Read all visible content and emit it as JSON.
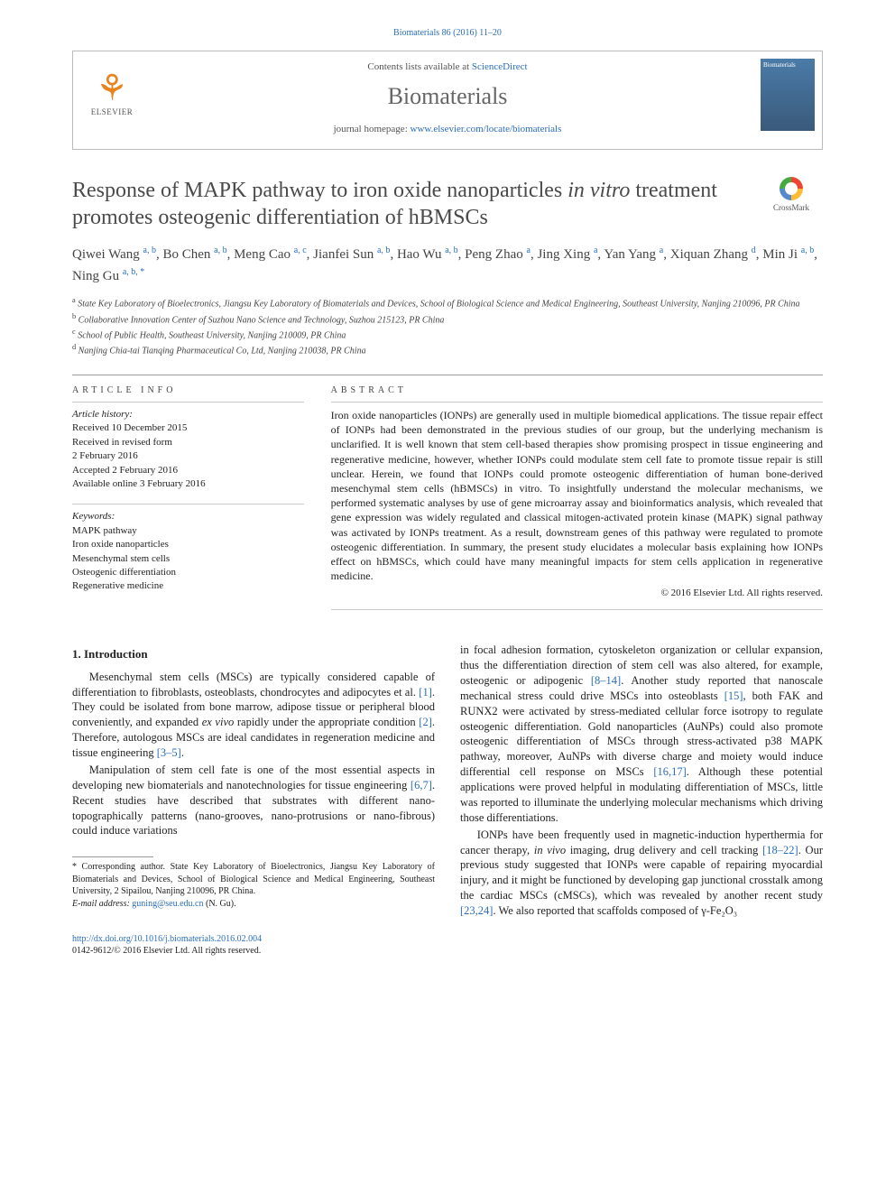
{
  "header": {
    "citation": "Biomaterials 86 (2016) 11–20",
    "contents_prefix": "Contents lists available at ",
    "contents_link": "ScienceDirect",
    "journal": "Biomaterials",
    "homepage_prefix": "journal homepage: ",
    "homepage_url": "www.elsevier.com/locate/biomaterials",
    "publisher_logo_text": "ELSEVIER",
    "cover_text": "Biomaterials"
  },
  "title": {
    "line1": "Response of MAPK pathway to iron oxide nanoparticles ",
    "italic": "in vitro",
    "line2": " treatment promotes osteogenic differentiation of hBMSCs"
  },
  "crossmark": "CrossMark",
  "authors": [
    {
      "name": "Qiwei Wang",
      "affs": "a, b"
    },
    {
      "name": "Bo Chen",
      "affs": "a, b"
    },
    {
      "name": "Meng Cao",
      "affs": "a, c"
    },
    {
      "name": "Jianfei Sun",
      "affs": "a, b"
    },
    {
      "name": "Hao Wu",
      "affs": "a, b"
    },
    {
      "name": "Peng Zhao",
      "affs": "a"
    },
    {
      "name": "Jing Xing",
      "affs": "a"
    },
    {
      "name": "Yan Yang",
      "affs": "a"
    },
    {
      "name": "Xiquan Zhang",
      "affs": "d"
    },
    {
      "name": "Min Ji",
      "affs": "a, b"
    },
    {
      "name": "Ning Gu",
      "affs": "a, b, *"
    }
  ],
  "affiliations": [
    {
      "key": "a",
      "text": "State Key Laboratory of Bioelectronics, Jiangsu Key Laboratory of Biomaterials and Devices, School of Biological Science and Medical Engineering, Southeast University, Nanjing 210096, PR China"
    },
    {
      "key": "b",
      "text": "Collaborative Innovation Center of Suzhou Nano Science and Technology, Suzhou 215123, PR China"
    },
    {
      "key": "c",
      "text": "School of Public Health, Southeast University, Nanjing 210009, PR China"
    },
    {
      "key": "d",
      "text": "Nanjing Chia-tai Tianqing Pharmaceutical Co, Ltd, Nanjing 210038, PR China"
    }
  ],
  "article_info": {
    "label": "ARTICLE INFO",
    "history_label": "Article history:",
    "history": [
      "Received 10 December 2015",
      "Received in revised form",
      "2 February 2016",
      "Accepted 2 February 2016",
      "Available online 3 February 2016"
    ],
    "keywords_label": "Keywords:",
    "keywords": [
      "MAPK pathway",
      "Iron oxide nanoparticles",
      "Mesenchymal stem cells",
      "Osteogenic differentiation",
      "Regenerative medicine"
    ]
  },
  "abstract": {
    "label": "ABSTRACT",
    "text": "Iron oxide nanoparticles (IONPs) are generally used in multiple biomedical applications. The tissue repair effect of IONPs had been demonstrated in the previous studies of our group, but the underlying mechanism is unclarified. It is well known that stem cell-based therapies show promising prospect in tissue engineering and regenerative medicine, however, whether IONPs could modulate stem cell fate to promote tissue repair is still unclear. Herein, we found that IONPs could promote osteogenic differentiation of human bone-derived mesenchymal stem cells (hBMSCs) in vitro. To insightfully understand the molecular mechanisms, we performed systematic analyses by use of gene microarray assay and bioinformatics analysis, which revealed that gene expression was widely regulated and classical mitogen-activated protein kinase (MAPK) signal pathway was activated by IONPs treatment. As a result, downstream genes of this pathway were regulated to promote osteogenic differentiation. In summary, the present study elucidates a molecular basis explaining how IONPs effect on hBMSCs, which could have many meaningful impacts for stem cells application in regenerative medicine.",
    "copyright": "© 2016 Elsevier Ltd. All rights reserved."
  },
  "body": {
    "section_heading": "1. Introduction",
    "p1_a": "Mesenchymal stem cells (MSCs) are typically considered capable of differentiation to fibroblasts, osteoblasts, chondrocytes and adipocytes et al. ",
    "ref1": "[1]",
    "p1_b": ". They could be isolated from bone marrow, adipose tissue or peripheral blood conveniently, and expanded ",
    "p1_ital": "ex vivo",
    "p1_c": " rapidly under the appropriate condition ",
    "ref2": "[2]",
    "p1_d": ". Therefore, autologous MSCs are ideal candidates in regeneration medicine and tissue engineering ",
    "ref3": "[3–5]",
    "p1_e": ".",
    "p2_a": "Manipulation of stem cell fate is one of the most essential aspects in developing new biomaterials and nanotechnologies for tissue engineering ",
    "ref4": "[6,7]",
    "p2_b": ". Recent studies have described that substrates with different nano-topographically patterns (nano-grooves, nano-protrusions or nano-fibrous) could induce variations",
    "p3_a": "in focal adhesion formation, cytoskeleton organization or cellular expansion, thus the differentiation direction of stem cell was also altered, for example, osteogenic or adipogenic ",
    "ref5": "[8–14]",
    "p3_b": ". Another study reported that nanoscale mechanical stress could drive MSCs into osteoblasts ",
    "ref6": "[15]",
    "p3_c": ", both FAK and RUNX2 were activated by stress-mediated cellular force isotropy to regulate osteogenic differentiation. Gold nanoparticles (AuNPs) could also promote osteogenic differentiation of MSCs through stress-activated p38 MAPK pathway, moreover, AuNPs with diverse charge and moiety would induce differential cell response on MSCs ",
    "ref7": "[16,17]",
    "p3_d": ". Although these potential applications were proved helpful in modulating differentiation of MSCs, little was reported to illuminate the underlying molecular mechanisms which driving those differentiations.",
    "p4_a": "IONPs have been frequently used in magnetic-induction hyperthermia for cancer therapy, ",
    "p4_ital": "in vivo",
    "p4_b": " imaging, drug delivery and cell tracking ",
    "ref8": "[18–22]",
    "p4_c": ". Our previous study suggested that IONPs were capable of repairing myocardial injury, and it might be functioned by developing gap junctional crosstalk among the cardiac MSCs (cMSCs), which was revealed by another recent study ",
    "ref9": "[23,24]",
    "p4_d": ". We also reported that scaffolds composed of γ-Fe₂O₃"
  },
  "footnote": {
    "corr_label": "* Corresponding author. State Key Laboratory of Bioelectronics, Jiangsu Key Laboratory of Biomaterials and Devices, School of Biological Science and Medical Engineering, Southeast University, 2 Sipailou, Nanjing 210096, PR China.",
    "email_label": "E-mail address: ",
    "email": "guning@seu.edu.cn",
    "email_who": " (N. Gu)."
  },
  "doi": {
    "url": "http://dx.doi.org/10.1016/j.biomaterials.2016.02.004",
    "issn_line": "0142-9612/© 2016 Elsevier Ltd. All rights reserved."
  },
  "colors": {
    "link": "#2a6ebb",
    "text": "#222222",
    "muted": "#666666"
  }
}
